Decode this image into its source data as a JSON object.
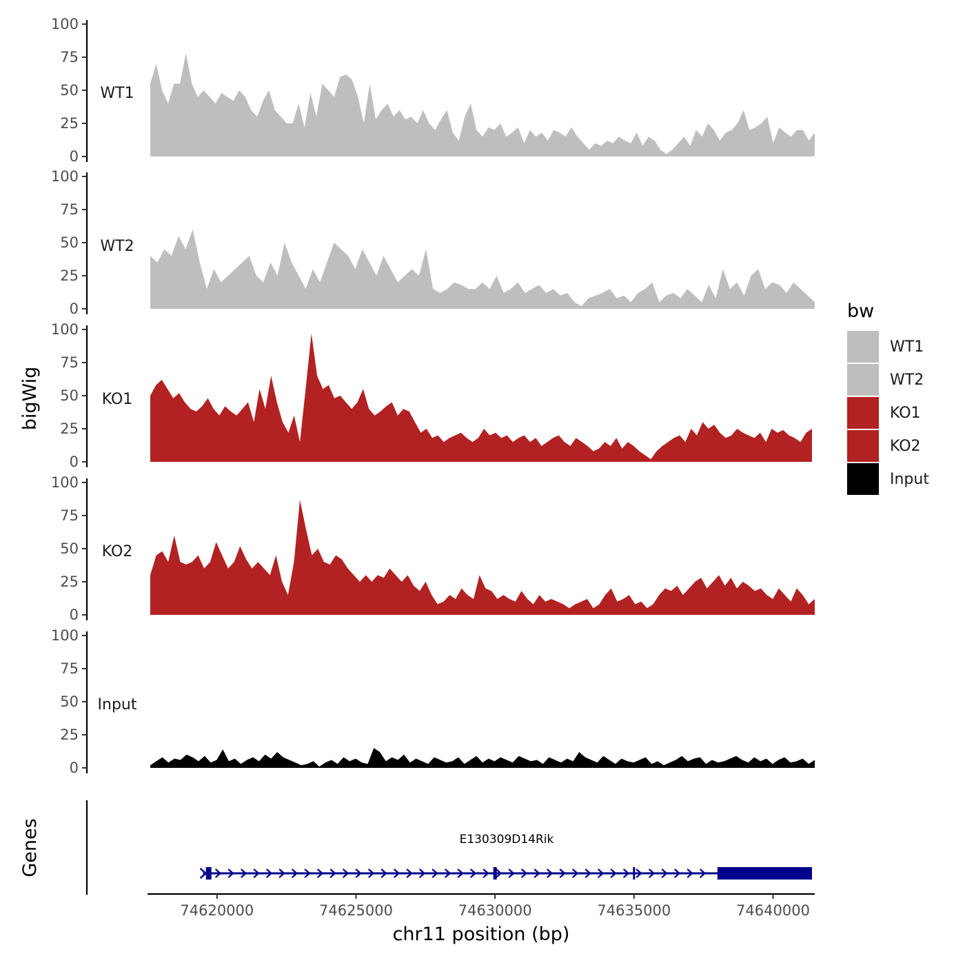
{
  "chart_data": {
    "type": "area",
    "ylabel": "bigWig",
    "xlabel": "chr11 position (bp)",
    "genes_label": "Genes",
    "xlim": [
      74617500,
      74641500
    ],
    "x_ticks": [
      74620000,
      74625000,
      74630000,
      74635000,
      74640000
    ],
    "x_tick_labels": [
      "74620000",
      "74625000",
      "74630000",
      "74635000",
      "74640000"
    ],
    "ylim": [
      0,
      100
    ],
    "y_ticks": [
      0,
      25,
      50,
      75,
      100
    ],
    "y_tick_labels": [
      "0",
      "25",
      "50",
      "75",
      "100"
    ],
    "legend": {
      "title": "bw",
      "position": "right",
      "entries": [
        {
          "label": "WT1",
          "color": "#bebebe"
        },
        {
          "label": "WT2",
          "color": "#bebebe"
        },
        {
          "label": "KO1",
          "color": "#b22222"
        },
        {
          "label": "KO2",
          "color": "#b22222"
        },
        {
          "label": "Input",
          "color": "#000000"
        }
      ]
    },
    "series": [
      {
        "name": "WT1",
        "color": "#bebebe",
        "x_start": 74617600,
        "x_end": 74641500,
        "values": [
          55,
          70,
          50,
          40,
          55,
          55,
          78,
          55,
          45,
          50,
          45,
          40,
          48,
          45,
          42,
          50,
          45,
          35,
          30,
          42,
          50,
          35,
          30,
          25,
          25,
          40,
          22,
          48,
          30,
          55,
          50,
          45,
          60,
          62,
          58,
          45,
          25,
          55,
          28,
          35,
          40,
          30,
          35,
          28,
          30,
          25,
          35,
          25,
          20,
          28,
          35,
          18,
          12,
          30,
          40,
          20,
          15,
          22,
          20,
          25,
          15,
          18,
          22,
          10,
          20,
          15,
          18,
          12,
          20,
          18,
          15,
          22,
          15,
          10,
          5,
          10,
          8,
          12,
          10,
          15,
          12,
          10,
          18,
          8,
          15,
          12,
          5,
          2,
          5,
          10,
          15,
          8,
          20,
          15,
          25,
          20,
          12,
          18,
          20,
          25,
          35,
          20,
          22,
          25,
          30,
          10,
          22,
          18,
          15,
          20,
          20,
          12,
          18
        ]
      },
      {
        "name": "WT2",
        "color": "#bebebe",
        "x_start": 74617600,
        "x_end": 74641500,
        "values": [
          40,
          35,
          45,
          40,
          55,
          45,
          60,
          35,
          15,
          30,
          20,
          25,
          30,
          35,
          40,
          25,
          20,
          35,
          25,
          50,
          35,
          25,
          15,
          30,
          20,
          35,
          50,
          45,
          40,
          30,
          45,
          35,
          25,
          40,
          30,
          20,
          25,
          30,
          25,
          45,
          15,
          12,
          15,
          20,
          18,
          15,
          15,
          20,
          15,
          25,
          12,
          15,
          20,
          12,
          15,
          18,
          12,
          15,
          10,
          12,
          5,
          2,
          8,
          10,
          12,
          15,
          8,
          10,
          5,
          12,
          15,
          20,
          5,
          10,
          12,
          8,
          15,
          10,
          5,
          18,
          8,
          30,
          15,
          20,
          10,
          25,
          30,
          15,
          20,
          18,
          12,
          20,
          15,
          10,
          5
        ]
      },
      {
        "name": "KO1",
        "color": "#b22222",
        "x_start": 74617600,
        "x_end": 74641400,
        "values": [
          50,
          58,
          62,
          55,
          48,
          52,
          45,
          40,
          38,
          42,
          48,
          40,
          35,
          42,
          38,
          35,
          40,
          45,
          30,
          55,
          40,
          65,
          45,
          30,
          22,
          35,
          15,
          55,
          97,
          65,
          55,
          58,
          48,
          50,
          45,
          40,
          45,
          55,
          40,
          35,
          38,
          42,
          45,
          35,
          40,
          38,
          30,
          22,
          25,
          18,
          20,
          15,
          18,
          20,
          22,
          18,
          15,
          18,
          25,
          20,
          22,
          18,
          20,
          15,
          18,
          20,
          15,
          18,
          12,
          15,
          18,
          20,
          15,
          12,
          18,
          15,
          12,
          8,
          10,
          15,
          12,
          18,
          10,
          15,
          12,
          8,
          5,
          2,
          8,
          12,
          15,
          18,
          20,
          15,
          25,
          20,
          30,
          25,
          28,
          22,
          18,
          20,
          25,
          22,
          20,
          18,
          22,
          15,
          25,
          22,
          24,
          20,
          18,
          15,
          22,
          25
        ]
      },
      {
        "name": "KO2",
        "color": "#b22222",
        "x_start": 74617600,
        "x_end": 74641500,
        "values": [
          30,
          45,
          48,
          40,
          60,
          40,
          38,
          40,
          45,
          35,
          40,
          55,
          45,
          35,
          40,
          52,
          42,
          35,
          40,
          35,
          30,
          45,
          25,
          15,
          40,
          87,
          65,
          45,
          50,
          40,
          38,
          45,
          42,
          35,
          30,
          25,
          30,
          25,
          30,
          28,
          35,
          30,
          25,
          30,
          22,
          18,
          25,
          15,
          8,
          10,
          15,
          12,
          20,
          15,
          12,
          30,
          20,
          18,
          12,
          15,
          12,
          10,
          18,
          12,
          8,
          15,
          10,
          12,
          10,
          8,
          5,
          8,
          10,
          12,
          5,
          8,
          15,
          20,
          10,
          12,
          15,
          8,
          10,
          5,
          8,
          15,
          20,
          18,
          22,
          15,
          20,
          25,
          28,
          20,
          25,
          30,
          22,
          28,
          20,
          25,
          22,
          18,
          20,
          15,
          12,
          20,
          15,
          10,
          20,
          15,
          8,
          12
        ]
      },
      {
        "name": "Input",
        "color": "#000000",
        "x_start": 74617600,
        "x_end": 74641500,
        "values": [
          2,
          5,
          8,
          4,
          7,
          6,
          10,
          8,
          5,
          9,
          4,
          6,
          14,
          5,
          7,
          3,
          6,
          8,
          5,
          10,
          7,
          12,
          8,
          6,
          4,
          2,
          3,
          5,
          1,
          4,
          6,
          3,
          8,
          5,
          7,
          4,
          3,
          15,
          12,
          5,
          8,
          6,
          10,
          4,
          7,
          5,
          3,
          8,
          6,
          4,
          5,
          8,
          3,
          6,
          9,
          4,
          7,
          5,
          8,
          6,
          4,
          9,
          7,
          5,
          6,
          3,
          8,
          6,
          4,
          7,
          5,
          12,
          8,
          6,
          4,
          9,
          6,
          3,
          7,
          5,
          4,
          6,
          8,
          3,
          5,
          2,
          4,
          6,
          9,
          5,
          7,
          8,
          3,
          6,
          4,
          5,
          7,
          9,
          6,
          4,
          8,
          5,
          7,
          3,
          6,
          8,
          4,
          5,
          7,
          3,
          6
        ]
      }
    ],
    "gene": {
      "name": "E130309D14Rik",
      "color": "#00008b",
      "start": 74619500,
      "end": 74641400,
      "strand": "+",
      "utr_end_start": 74638000,
      "exon_marks": [
        74619700,
        74630000,
        74635000
      ]
    }
  }
}
